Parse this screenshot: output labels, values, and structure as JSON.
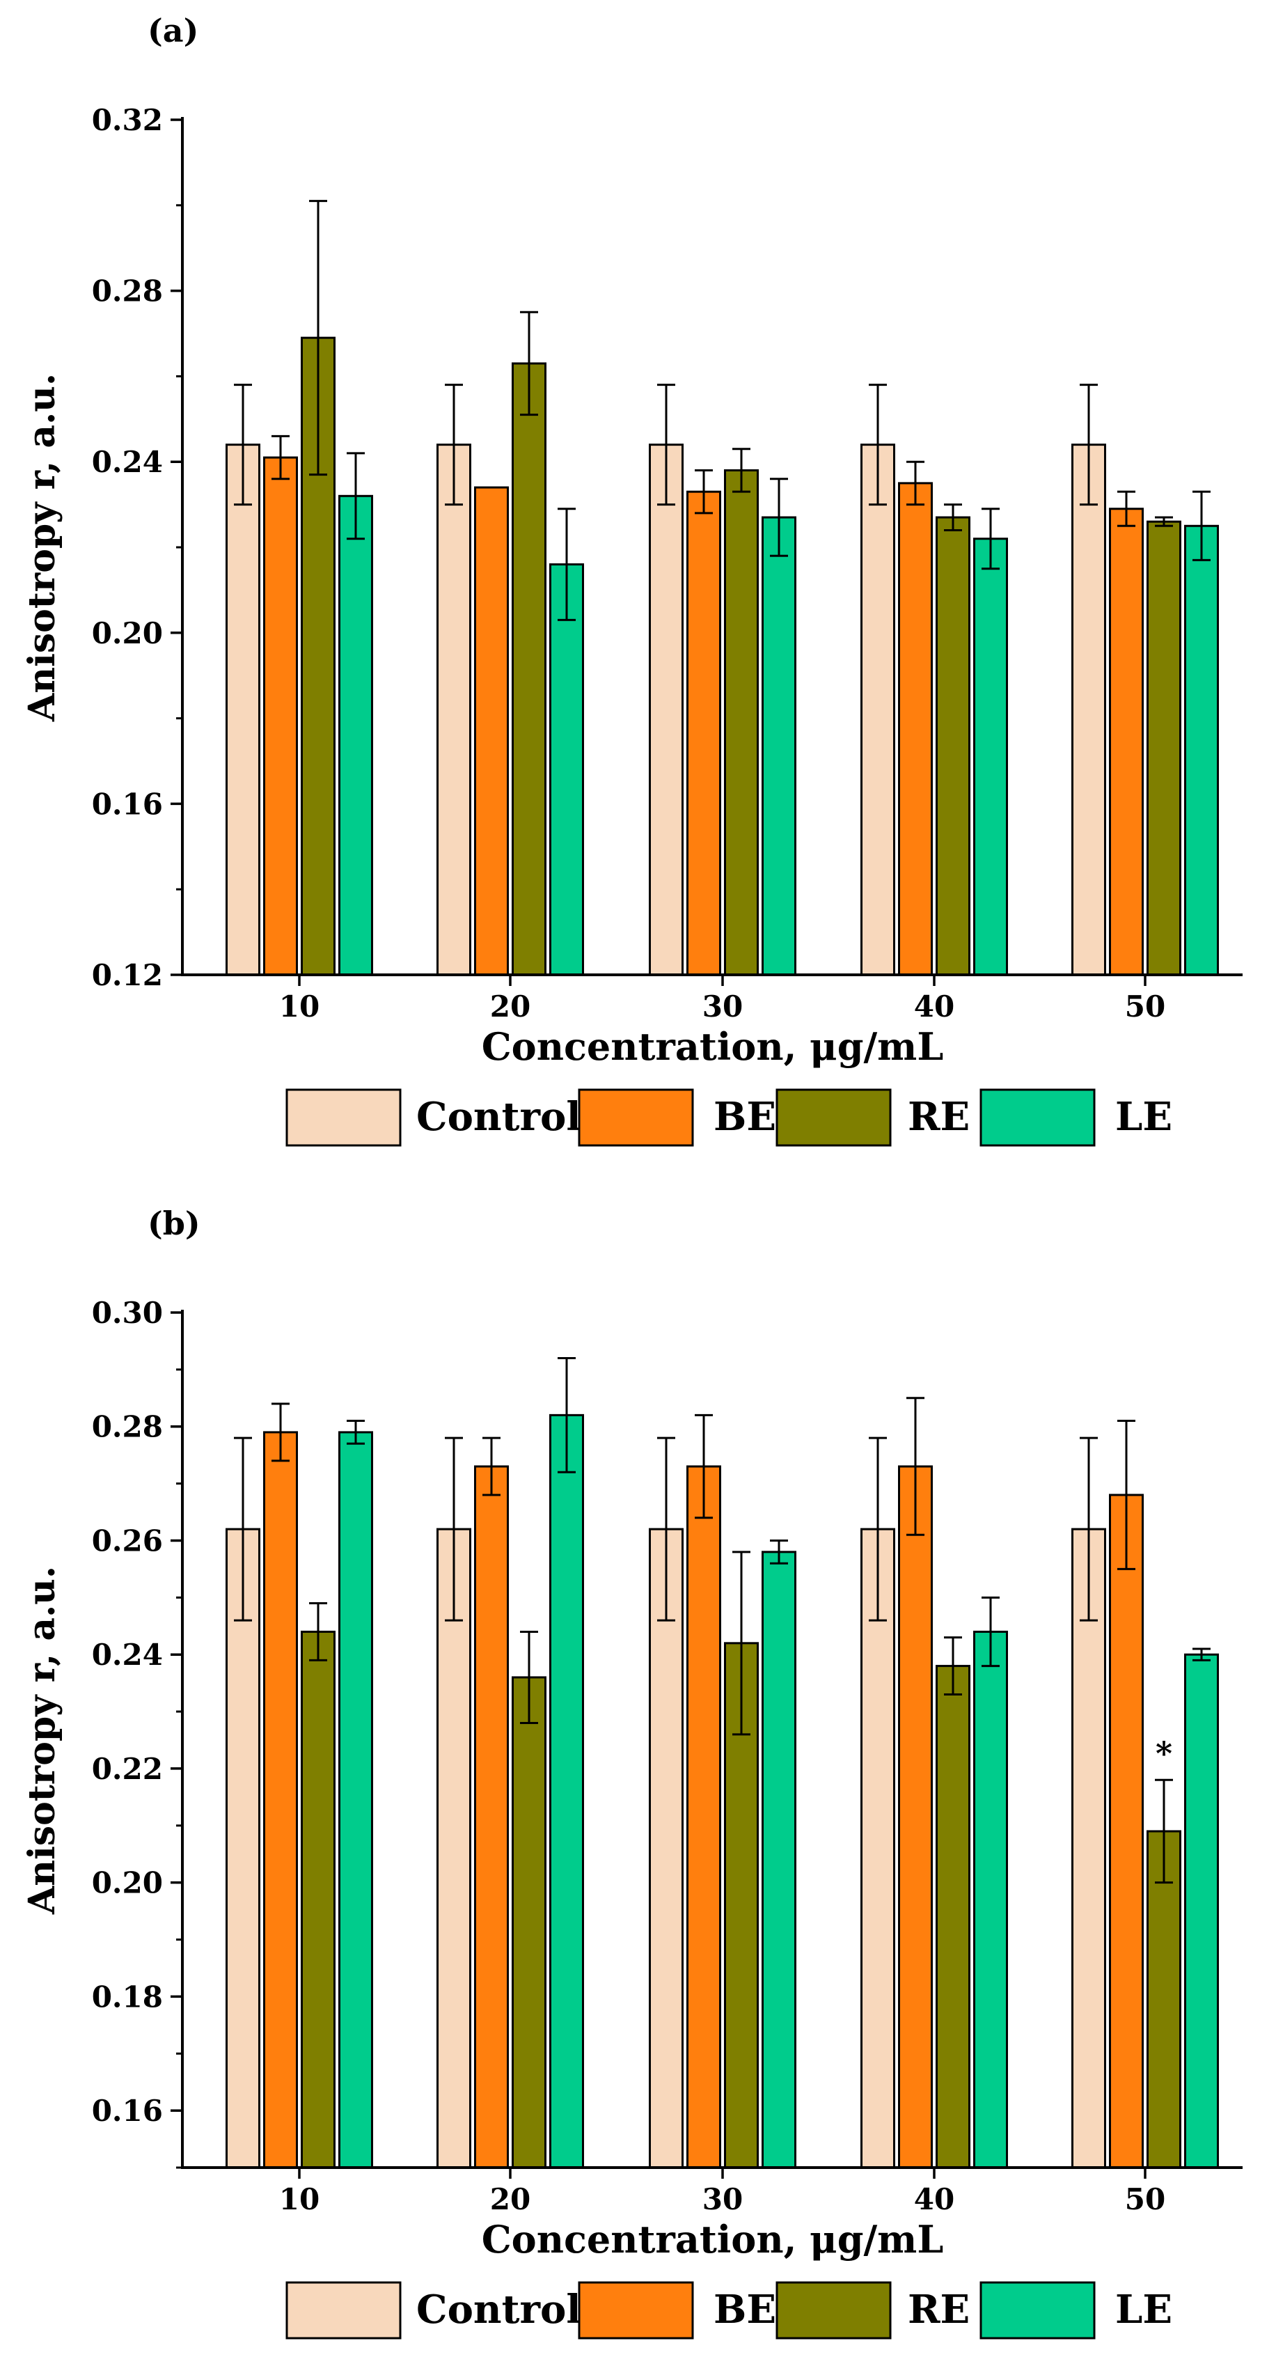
{
  "chart_data": [
    {
      "panel_label": "(a)",
      "type": "bar",
      "xlabel": "Concentration, μg/mL",
      "ylabel": "Anisotropy r, a.u.",
      "categories": [
        "10",
        "20",
        "30",
        "40",
        "50"
      ],
      "ylim": [
        0.12,
        0.32
      ],
      "ticks": [
        "0.12",
        "0.16",
        "0.20",
        "0.24",
        "0.28",
        "0.32"
      ],
      "tick_values": [
        0.12,
        0.16,
        0.2,
        0.24,
        0.28,
        0.32
      ],
      "minor_step": 0.02,
      "grid": false,
      "legend_position": "bottom",
      "series": [
        {
          "name": "Control",
          "values": [
            0.244,
            0.244,
            0.244,
            0.244,
            0.244
          ],
          "errors": [
            0.014,
            0.014,
            0.014,
            0.014,
            0.014
          ]
        },
        {
          "name": "BE",
          "values": [
            0.241,
            0.234,
            0.233,
            0.235,
            0.229
          ],
          "errors": [
            0.005,
            0,
            0.005,
            0.005,
            0.004
          ]
        },
        {
          "name": "RE",
          "values": [
            0.269,
            0.263,
            0.238,
            0.227,
            0.226
          ],
          "errors": [
            0.032,
            0.012,
            0.005,
            0.003,
            0.001
          ]
        },
        {
          "name": "LE",
          "values": [
            0.232,
            0.216,
            0.227,
            0.222,
            0.225
          ],
          "errors": [
            0.01,
            0.013,
            0.009,
            0.007,
            0.008
          ]
        }
      ],
      "annotations": []
    },
    {
      "panel_label": "(b)",
      "type": "bar",
      "xlabel": "Concentration, μg/mL",
      "ylabel": "Anisotropy r, a.u.",
      "categories": [
        "10",
        "20",
        "30",
        "40",
        "50"
      ],
      "ylim": [
        0.15,
        0.3
      ],
      "ticks": [
        "0.16",
        "0.18",
        "0.20",
        "0.22",
        "0.24",
        "0.26",
        "0.28",
        "0.30"
      ],
      "tick_values": [
        0.16,
        0.18,
        0.2,
        0.22,
        0.24,
        0.26,
        0.28,
        0.3
      ],
      "minor_step": 0.01,
      "grid": false,
      "legend_position": "bottom",
      "series": [
        {
          "name": "Control",
          "values": [
            0.262,
            0.262,
            0.262,
            0.262,
            0.262
          ],
          "errors": [
            0.016,
            0.016,
            0.016,
            0.016,
            0.016
          ]
        },
        {
          "name": "BE",
          "values": [
            0.279,
            0.273,
            0.273,
            0.273,
            0.268
          ],
          "errors": [
            0.005,
            0.005,
            0.009,
            0.012,
            0.013
          ]
        },
        {
          "name": "RE",
          "values": [
            0.244,
            0.236,
            0.242,
            0.238,
            0.209
          ],
          "errors": [
            0.005,
            0.008,
            0.016,
            0.005,
            0.009
          ]
        },
        {
          "name": "LE",
          "values": [
            0.279,
            0.282,
            0.258,
            0.244,
            0.24
          ],
          "errors": [
            0.002,
            0.01,
            0.002,
            0.006,
            0.001
          ]
        }
      ],
      "annotations": [
        {
          "text": "*",
          "series": "RE",
          "category": "50"
        }
      ]
    }
  ],
  "legend": [
    {
      "label": "Control",
      "color": "#F8D8BC"
    },
    {
      "label": "BE",
      "color": "#FF7F0E"
    },
    {
      "label": "RE",
      "color": "#7F7F00"
    },
    {
      "label": "LE",
      "color": "#00CC8C"
    }
  ]
}
